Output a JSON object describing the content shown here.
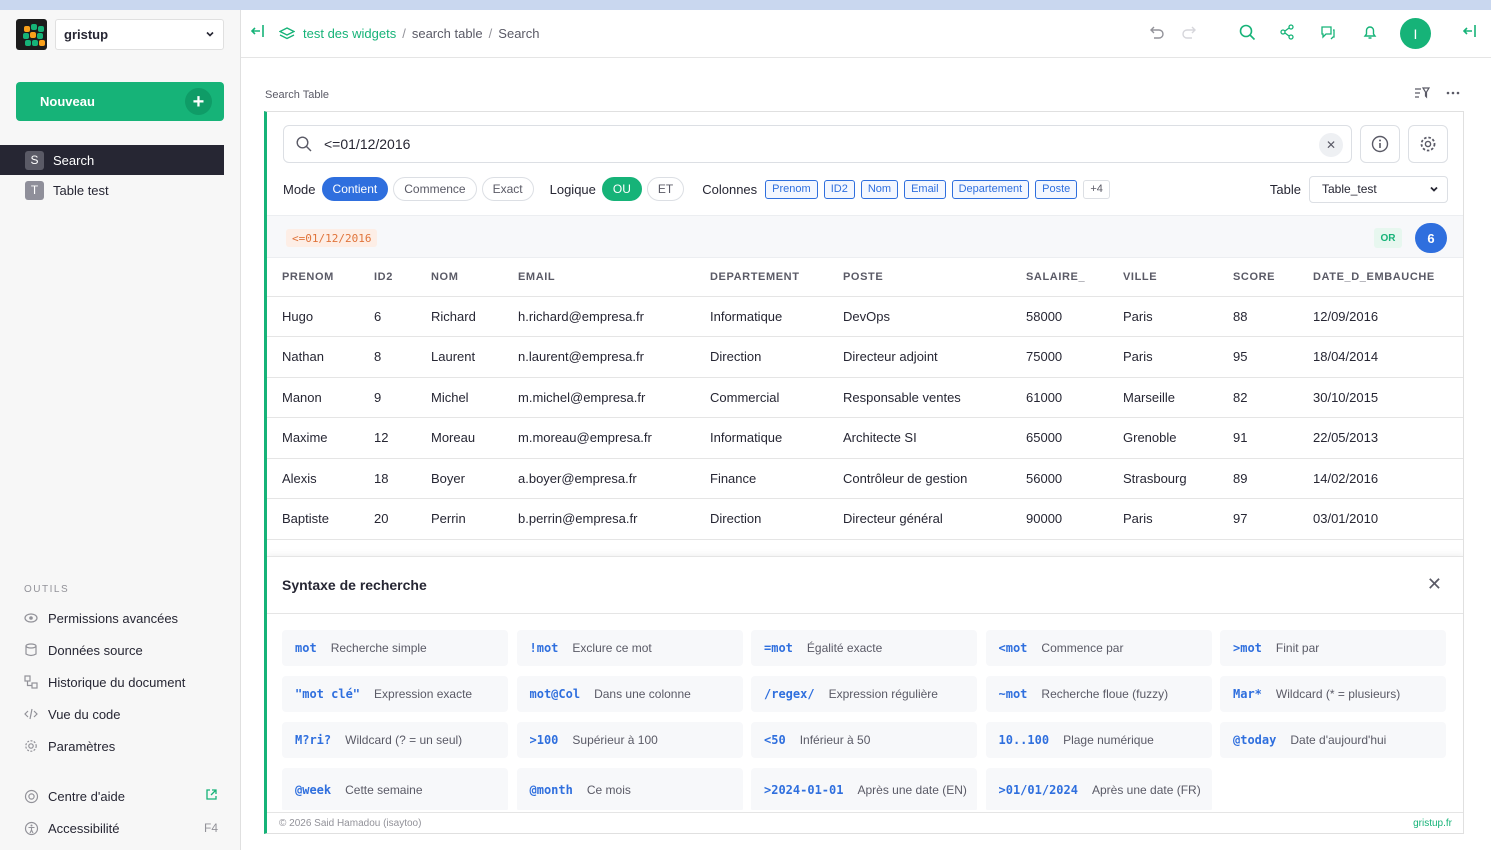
{
  "org": {
    "name": "gristup"
  },
  "sidebar": {
    "new_label": "Nouveau",
    "pages": [
      {
        "initial": "S",
        "label": "Search",
        "active": true
      },
      {
        "initial": "T",
        "label": "Table test",
        "active": false
      }
    ],
    "tools_heading": "OUTILS",
    "tools": [
      {
        "icon": "eye-icon",
        "label": "Permissions avancées"
      },
      {
        "icon": "database-icon",
        "label": "Données source"
      },
      {
        "icon": "history-icon",
        "label": "Historique du document"
      },
      {
        "icon": "code-icon",
        "label": "Vue du code"
      },
      {
        "icon": "gear-icon",
        "label": "Paramètres"
      }
    ],
    "help": {
      "label": "Centre d'aide"
    },
    "accessibility": {
      "label": "Accessibilité",
      "shortcut": "F4"
    }
  },
  "header": {
    "doc_name": "test des widgets",
    "crumbs": [
      "search table",
      "Search"
    ],
    "avatar_initial": "I"
  },
  "widget": {
    "title": "Search Table",
    "query": "<=01/12/2016",
    "mode_label": "Mode",
    "modes": [
      "Contient",
      "Commence",
      "Exact"
    ],
    "logic_label": "Logique",
    "logics": [
      "OU",
      "ET"
    ],
    "columns_label": "Colonnes",
    "columns": [
      "Prenom",
      "ID2",
      "Nom",
      "Email",
      "Departement",
      "Poste"
    ],
    "columns_more": "+4",
    "table_label": "Table",
    "table_value": "Table_test",
    "filter_tag": "<=01/12/2016",
    "or_badge": "OR",
    "result_count": "6"
  },
  "table": {
    "headers": [
      "PRENOM",
      "ID2",
      "NOM",
      "EMAIL",
      "DEPARTEMENT",
      "POSTE",
      "SALAIRE_",
      "VILLE",
      "SCORE",
      "DATE_D_EMBAUCHE"
    ],
    "rows": [
      [
        "Hugo",
        "6",
        "Richard",
        "h.richard@empresa.fr",
        "Informatique",
        "DevOps",
        "58000",
        "Paris",
        "88",
        "12/09/2016"
      ],
      [
        "Nathan",
        "8",
        "Laurent",
        "n.laurent@empresa.fr",
        "Direction",
        "Directeur adjoint",
        "75000",
        "Paris",
        "95",
        "18/04/2014"
      ],
      [
        "Manon",
        "9",
        "Michel",
        "m.michel@empresa.fr",
        "Commercial",
        "Responsable ventes",
        "61000",
        "Marseille",
        "82",
        "30/10/2015"
      ],
      [
        "Maxime",
        "12",
        "Moreau",
        "m.moreau@empresa.fr",
        "Informatique",
        "Architecte SI",
        "65000",
        "Grenoble",
        "91",
        "22/05/2013"
      ],
      [
        "Alexis",
        "18",
        "Boyer",
        "a.boyer@empresa.fr",
        "Finance",
        "Contrôleur de gestion",
        "56000",
        "Strasbourg",
        "89",
        "14/02/2016"
      ],
      [
        "Baptiste",
        "20",
        "Perrin",
        "b.perrin@empresa.fr",
        "Direction",
        "Directeur général",
        "90000",
        "Paris",
        "97",
        "03/01/2010"
      ]
    ]
  },
  "syntax": {
    "title": "Syntaxe de recherche",
    "items": [
      {
        "code": "mot",
        "desc": "Recherche simple"
      },
      {
        "code": "!mot",
        "desc": "Exclure ce mot"
      },
      {
        "code": "=mot",
        "desc": "Égalité exacte"
      },
      {
        "code": "<mot",
        "desc": "Commence par"
      },
      {
        "code": ">mot",
        "desc": "Finit par"
      },
      {
        "code": "\"mot clé\"",
        "desc": "Expression exacte"
      },
      {
        "code": "mot@Col",
        "desc": "Dans une colonne"
      },
      {
        "code": "/regex/",
        "desc": "Expression régulière"
      },
      {
        "code": "~mot",
        "desc": "Recherche floue (fuzzy)"
      },
      {
        "code": "Mar*",
        "desc": "Wildcard (* = plusieurs)"
      },
      {
        "code": "M?ri?",
        "desc": "Wildcard (? = un seul)"
      },
      {
        "code": ">100",
        "desc": "Supérieur à 100"
      },
      {
        "code": "<50",
        "desc": "Inférieur à 50"
      },
      {
        "code": "10..100",
        "desc": "Plage numérique"
      },
      {
        "code": "@today",
        "desc": "Date d'aujourd'hui"
      },
      {
        "code": "@week",
        "desc": "Cette semaine"
      },
      {
        "code": "@month",
        "desc": "Ce mois"
      },
      {
        "code": ">2024-01-01",
        "desc": "Après une date (EN)"
      },
      {
        "code": ">01/01/2024",
        "desc": "Après une date (FR)"
      }
    ]
  },
  "footer": {
    "copyright": "© 2026 Said Hamadou (isaytoo)",
    "link": "gristup.fr"
  },
  "colors": {
    "accent": "#16b378",
    "primary": "#2f6fde",
    "dark": "#262633"
  }
}
